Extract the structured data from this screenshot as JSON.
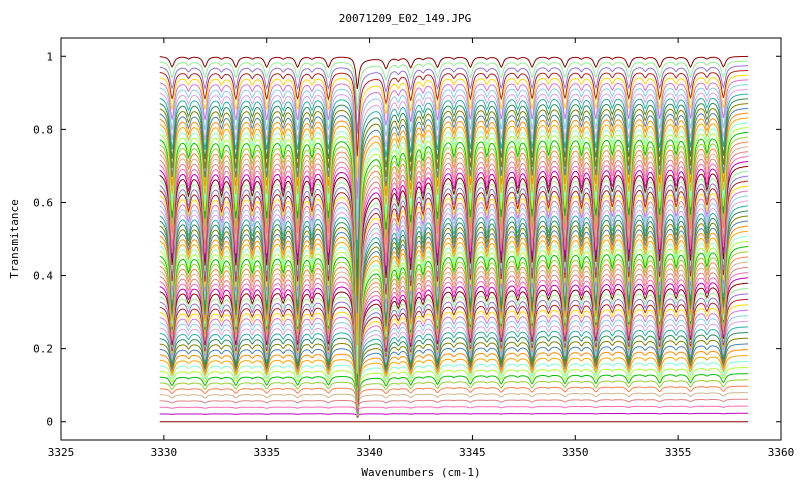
{
  "chart_data": {
    "type": "line",
    "title": "20071209_E02_149.JPG",
    "xlabel": "Wavenumbers (cm-1)",
    "ylabel": "Transmitance",
    "xlim": [
      3325,
      3360
    ],
    "ylim": [
      -0.05,
      1.05
    ],
    "x_ticks": [
      3325,
      3330,
      3335,
      3340,
      3345,
      3350,
      3355,
      3360
    ],
    "y_ticks": [
      0,
      0.2,
      0.4,
      0.6,
      0.8,
      1
    ],
    "x_tick_labels": [
      "3325",
      "3330",
      "3335",
      "3340",
      "3345",
      "3350",
      "3355",
      "3360"
    ],
    "y_tick_labels": [
      "0",
      "0.2",
      "0.4",
      "0.6",
      "0.8",
      "1"
    ],
    "grid": false,
    "legend": "none",
    "data_x_range": [
      3329.8,
      3358.4
    ],
    "series_count": 70,
    "baseline_range": [
      0.0,
      1.0
    ],
    "strong_feature_wavenumber": 3339.4,
    "absorption_lines": [
      3330.4,
      3332.0,
      3333.5,
      3335.0,
      3336.5,
      3338.0,
      3339.4,
      3340.8,
      3342.0,
      3343.3,
      3344.9,
      3346.4,
      3347.9,
      3349.5,
      3351.0,
      3352.6,
      3354.1,
      3355.6,
      3357.2
    ],
    "minor_lines": [
      3331.2,
      3332.8,
      3334.3,
      3335.8,
      3337.2,
      3341.4,
      3342.6,
      3344.1,
      3345.7,
      3347.2,
      3348.7,
      3350.3,
      3351.8,
      3353.4,
      3354.9,
      3356.4
    ],
    "palette": [
      "#8b0000",
      "#c000c0",
      "#ff69b4",
      "#e08080",
      "#d2b48c",
      "#ff7f50",
      "#9acd32",
      "#00c000",
      "#adff2f",
      "#7fffd4",
      "#ffa500",
      "#ff8c00",
      "#4682b4",
      "#808000",
      "#2e8b57",
      "#20b2aa",
      "#dda0dd",
      "#87ceeb",
      "#da70d6",
      "#ffd700",
      "#b22222",
      "#9370db",
      "#90ee90"
    ]
  }
}
